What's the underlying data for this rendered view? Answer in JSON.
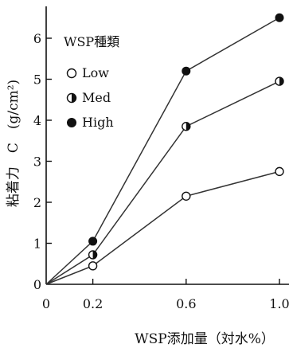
{
  "chart_data": {
    "type": "line",
    "title": "",
    "xlabel": "WSP添加量（対水%）",
    "ylabel": "粘着力　C　(g/cm²)",
    "x_ticks": [
      "0",
      "0.2",
      "0.6",
      "1.0"
    ],
    "y_ticks": [
      "0",
      "1",
      "2",
      "3",
      "4",
      "5",
      "6"
    ],
    "xlim": [
      0,
      1.0
    ],
    "ylim": [
      0,
      7
    ],
    "grid": false,
    "legend": {
      "title": "WSP種類",
      "position": "top-left"
    },
    "series": [
      {
        "name": "Low",
        "marker": "open-circle",
        "x": [
          0,
          0.2,
          0.6,
          1.0
        ],
        "y": [
          0,
          0.45,
          2.15,
          2.75
        ]
      },
      {
        "name": "Med",
        "marker": "half-filled-circle",
        "x": [
          0,
          0.2,
          0.6,
          1.0
        ],
        "y": [
          0,
          0.72,
          3.85,
          4.95
        ]
      },
      {
        "name": "High",
        "marker": "filled-circle",
        "x": [
          0,
          0.2,
          0.6,
          1.0
        ],
        "y": [
          0,
          1.05,
          5.2,
          6.5
        ]
      }
    ],
    "colors": {
      "line": "#333333",
      "marker": "#111111",
      "axis": "#111111"
    }
  }
}
